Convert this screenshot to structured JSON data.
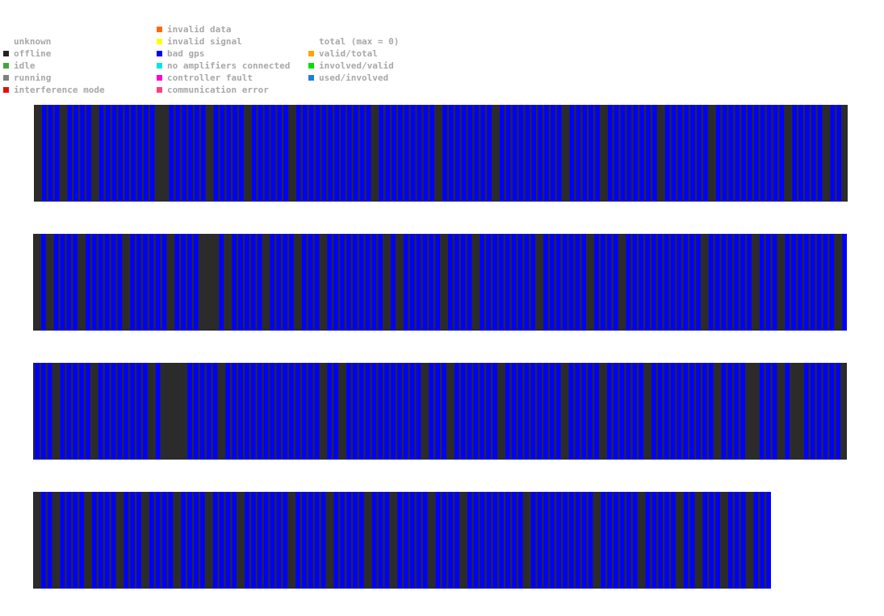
{
  "legend": {
    "status": [
      {
        "label": "unknown",
        "color": ""
      },
      {
        "label": "offline",
        "color": "#222222"
      },
      {
        "label": "idle",
        "color": "#3fa63f"
      },
      {
        "label": "running",
        "color": "#808080"
      },
      {
        "label": "interference mode",
        "color": "#e01010"
      }
    ],
    "faults": [
      {
        "label": "invalid data",
        "color": "#ff6a00"
      },
      {
        "label": "invalid signal",
        "color": "#ffff00"
      },
      {
        "label": "bad gps",
        "color": "#0000ff"
      },
      {
        "label": "no amplifiers connected",
        "color": "#00e5e5"
      },
      {
        "label": "controller fault",
        "color": "#ff00cc"
      },
      {
        "label": "communication error",
        "color": "#ff3f7f"
      }
    ],
    "totals": [
      {
        "label": "total (max = 0)",
        "color": ""
      },
      {
        "label": "valid/total",
        "color": "#ffa500"
      },
      {
        "label": "involved/valid",
        "color": "#00e000"
      },
      {
        "label": "used/involved",
        "color": "#1e7fd8"
      }
    ]
  },
  "chart_data": {
    "type": "heatmap",
    "colors": {
      "bad gps": "#0000ff",
      "offline": "#2b2b2b"
    },
    "strips": [
      {
        "count": 128,
        "offline": [
          0,
          4,
          9,
          19,
          20,
          27,
          33,
          40,
          53,
          63,
          72,
          83,
          89,
          98,
          106,
          118,
          124,
          127
        ]
      },
      {
        "count": 128,
        "offline": [
          0,
          2,
          7,
          14,
          21,
          26,
          27,
          28,
          30,
          36,
          41,
          45,
          55,
          57,
          64,
          69,
          79,
          87,
          92,
          105,
          113,
          117,
          126
        ]
      },
      {
        "count": 128,
        "offline": [
          3,
          9,
          18,
          20,
          21,
          22,
          23,
          29,
          45,
          48,
          61,
          65,
          73,
          83,
          89,
          96,
          107,
          112,
          113,
          117,
          119,
          120,
          127
        ]
      },
      {
        "count": 116,
        "offline": [
          0,
          3,
          8,
          13,
          17,
          22,
          27,
          32,
          40,
          46,
          52,
          56,
          62,
          67,
          77,
          88,
          95,
          101,
          104,
          108,
          112
        ]
      }
    ]
  }
}
